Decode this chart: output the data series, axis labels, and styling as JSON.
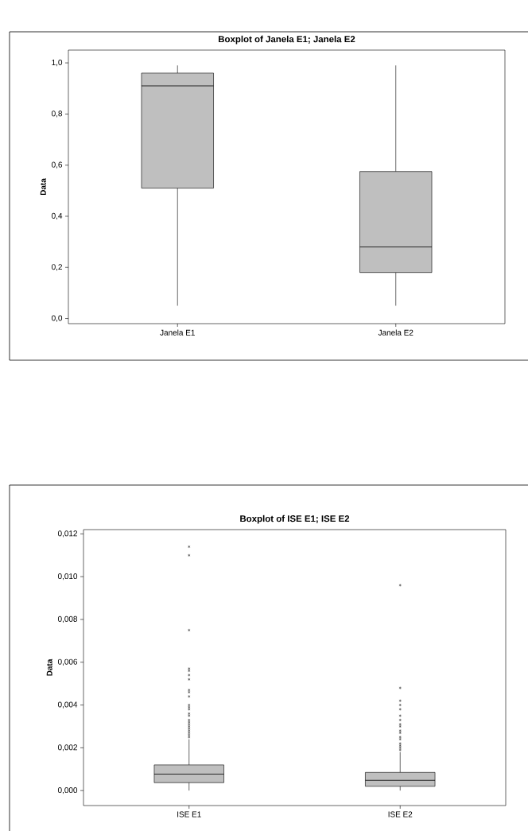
{
  "chart_data": [
    {
      "type": "box",
      "title": "Boxplot of Janela E1; Janela E2",
      "ylabel": "Data",
      "categories": [
        "Janela E1",
        "Janela E2"
      ],
      "series": [
        {
          "color": "#bfbfbf",
          "boxes": [
            {
              "low": 0.05,
              "q1": 0.51,
              "median": 0.91,
              "q3": 0.96,
              "high": 0.99
            },
            {
              "low": 0.05,
              "q1": 0.18,
              "median": 0.28,
              "q3": 0.575,
              "high": 0.99
            }
          ]
        }
      ],
      "ylim": [
        -0.02,
        1.05
      ],
      "yticks": [
        {
          "value": 0,
          "label": "0,0"
        },
        {
          "value": 0.2,
          "label": "0,2"
        },
        {
          "value": 0.4,
          "label": "0,4"
        },
        {
          "value": 0.6,
          "label": "0,6"
        },
        {
          "value": 0.8,
          "label": "0,8"
        },
        {
          "value": 1,
          "label": "1,0"
        }
      ]
    },
    {
      "type": "box",
      "title": "Boxplot of ISE E1; ISE E2",
      "ylabel": "Data",
      "categories": [
        "ISE E1",
        "ISE E2"
      ],
      "marker": "star",
      "series": [
        {
          "color": "#bfbfbf",
          "boxes": [
            {
              "low": 0,
              "q1": 0.00037,
              "median": 0.00077,
              "q3": 0.0012,
              "high": 0.0024,
              "outliers": [
                0.0114,
                0.011,
                0.0075,
                0.0057,
                0.0056,
                0.0054,
                0.0052,
                0.0047,
                0.0046,
                0.0044,
                0.004,
                0.0039,
                0.0038,
                0.0036,
                0.0035,
                0.0033,
                0.0032,
                0.0031,
                0.003,
                0.0029,
                0.0028,
                0.0027,
                0.0026,
                0.0025
              ]
            },
            {
              "low": 0,
              "q1": 0.0002,
              "median": 0.00048,
              "q3": 0.00085,
              "high": 0.0018,
              "outliers": [
                0.0096,
                0.0048,
                0.0042,
                0.004,
                0.0038,
                0.0035,
                0.0033,
                0.0031,
                0.003,
                0.0028,
                0.0027,
                0.0025,
                0.0024,
                0.0022,
                0.0021,
                0.002,
                0.0019
              ]
            }
          ]
        }
      ],
      "ylim": [
        -0.0007,
        0.0122
      ],
      "yticks": [
        {
          "value": 0,
          "label": "0,000"
        },
        {
          "value": 0.002,
          "label": "0,002"
        },
        {
          "value": 0.004,
          "label": "0,004"
        },
        {
          "value": 0.006,
          "label": "0,006"
        },
        {
          "value": 0.008,
          "label": "0,008"
        },
        {
          "value": 0.01,
          "label": "0,010"
        },
        {
          "value": 0.012,
          "label": "0,012"
        }
      ]
    }
  ]
}
